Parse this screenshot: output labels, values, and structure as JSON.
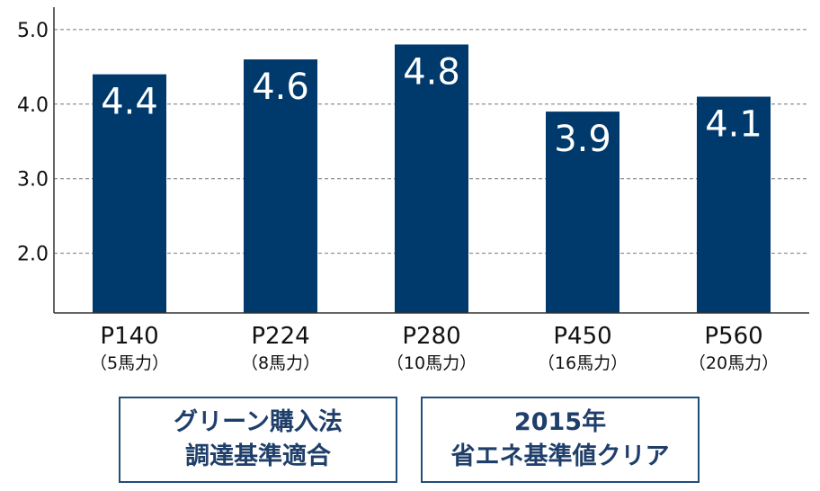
{
  "chart_data": {
    "type": "bar",
    "categories": [
      "P140",
      "P224",
      "P280",
      "P450",
      "P560"
    ],
    "category_sublabels": [
      "（5馬力）",
      "（8馬力）",
      "（10馬力）",
      "（16馬力）",
      "（20馬力）"
    ],
    "values": [
      4.4,
      4.6,
      4.8,
      3.9,
      4.1
    ],
    "value_labels": [
      "4.4",
      "4.6",
      "4.8",
      "3.9",
      "4.1"
    ],
    "yticks": [
      "2.0",
      "3.0",
      "4.0",
      "5.0"
    ],
    "ylim": [
      1.2,
      5.3
    ],
    "grid": "horizontal-dashed",
    "bar_color": "#003a6c",
    "title": "",
    "xlabel": "",
    "ylabel": ""
  },
  "badges": [
    {
      "line1": "グリーン購入法",
      "line2": "調達基準適合"
    },
    {
      "line1": "2015年",
      "line2": "省エネ基準値クリア"
    }
  ]
}
